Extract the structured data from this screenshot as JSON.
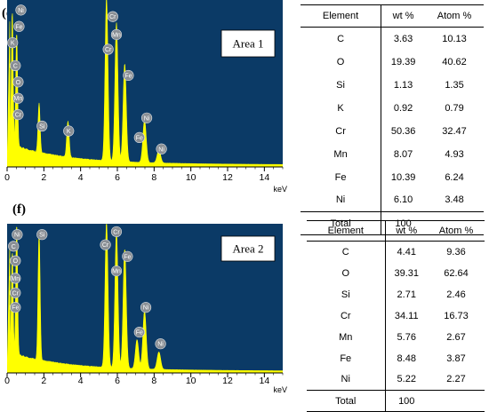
{
  "panels": [
    {
      "label": "(e)",
      "area_label": "Area 1",
      "table": {
        "headers": [
          "Element",
          "wt %",
          "Atom %"
        ],
        "rows": [
          [
            "C",
            "3.63",
            "10.13"
          ],
          [
            "O",
            "19.39",
            "40.62"
          ],
          [
            "Si",
            "1.13",
            "1.35"
          ],
          [
            "K",
            "0.92",
            "0.79"
          ],
          [
            "Cr",
            "50.36",
            "32.47"
          ],
          [
            "Mn",
            "8.07",
            "4.93"
          ],
          [
            "Fe",
            "10.39",
            "6.24"
          ],
          [
            "Ni",
            "6.10",
            "3.48"
          ]
        ],
        "total": [
          "Total",
          "100",
          ""
        ]
      }
    },
    {
      "label": "(f)",
      "area_label": "Area 2",
      "table": {
        "headers": [
          "Element",
          "wt %",
          "Atom %"
        ],
        "rows": [
          [
            "C",
            "4.41",
            "9.36"
          ],
          [
            "O",
            "39.31",
            "62.64"
          ],
          [
            "Si",
            "2.71",
            "2.46"
          ],
          [
            "Cr",
            "34.11",
            "16.73"
          ],
          [
            "Mn",
            "5.76",
            "2.67"
          ],
          [
            "Fe",
            "8.48",
            "3.87"
          ],
          [
            "Ni",
            "5.22",
            "2.27"
          ]
        ],
        "total": [
          "Total",
          "100",
          ""
        ]
      }
    }
  ],
  "chart_data": [
    {
      "type": "area",
      "xlabel": "keV",
      "xlim": [
        0,
        15
      ],
      "x_ticks": [
        0,
        2,
        4,
        6,
        8,
        10,
        12,
        14
      ],
      "grid": false,
      "colors": {
        "plot_bg": "#0b3a66",
        "spectrum": "#ffff00",
        "tag": "#8a8f95"
      },
      "peaks": [
        {
          "x": 0.28,
          "rel_height": 0.82
        },
        {
          "x": 0.52,
          "rel_height": 0.7
        },
        {
          "x": 1.74,
          "rel_height": 0.3
        },
        {
          "x": 3.31,
          "rel_height": 0.22
        },
        {
          "x": 5.41,
          "rel_height": 1.0
        },
        {
          "x": 5.95,
          "rel_height": 0.85
        },
        {
          "x": 6.4,
          "rel_height": 0.6
        },
        {
          "x": 7.48,
          "rel_height": 0.26
        },
        {
          "x": 8.26,
          "rel_height": 0.08
        }
      ],
      "tags": [
        {
          "text": "Ni",
          "x": 0.75,
          "rel_y": 0.96
        },
        {
          "text": "Fe",
          "x": 0.65,
          "rel_y": 0.86
        },
        {
          "text": "K",
          "x": 0.3,
          "rel_y": 0.76
        },
        {
          "text": "C",
          "x": 0.45,
          "rel_y": 0.62
        },
        {
          "text": "O",
          "x": 0.6,
          "rel_y": 0.52
        },
        {
          "text": "Mn",
          "x": 0.6,
          "rel_y": 0.42
        },
        {
          "text": "Cr",
          "x": 0.6,
          "rel_y": 0.32
        },
        {
          "text": "Si",
          "x": 1.9,
          "rel_y": 0.25
        },
        {
          "text": "K",
          "x": 3.35,
          "rel_y": 0.22
        },
        {
          "text": "Cr",
          "x": 5.75,
          "rel_y": 0.92
        },
        {
          "text": "Mn",
          "x": 5.95,
          "rel_y": 0.81
        },
        {
          "text": "Cr",
          "x": 5.5,
          "rel_y": 0.72
        },
        {
          "text": "Fe",
          "x": 6.6,
          "rel_y": 0.56
        },
        {
          "text": "Ni",
          "x": 7.6,
          "rel_y": 0.3
        },
        {
          "text": "Fe",
          "x": 7.2,
          "rel_y": 0.18
        },
        {
          "text": "Ni",
          "x": 8.4,
          "rel_y": 0.11
        }
      ]
    },
    {
      "type": "area",
      "xlabel": "keV",
      "xlim": [
        0,
        15
      ],
      "x_ticks": [
        0,
        2,
        4,
        6,
        8,
        10,
        12,
        14
      ],
      "grid": false,
      "colors": {
        "plot_bg": "#0b3a66",
        "spectrum": "#ffff00",
        "tag": "#8a8f95"
      },
      "peaks": [
        {
          "x": 0.28,
          "rel_height": 0.7
        },
        {
          "x": 0.52,
          "rel_height": 0.9
        },
        {
          "x": 1.74,
          "rel_height": 0.88
        },
        {
          "x": 5.41,
          "rel_height": 1.0
        },
        {
          "x": 5.95,
          "rel_height": 0.94
        },
        {
          "x": 6.4,
          "rel_height": 0.82
        },
        {
          "x": 7.07,
          "rel_height": 0.2
        },
        {
          "x": 7.48,
          "rel_height": 0.4
        },
        {
          "x": 8.26,
          "rel_height": 0.12
        }
      ],
      "tags": [
        {
          "text": "Ni",
          "x": 0.55,
          "rel_y": 0.95
        },
        {
          "text": "C",
          "x": 0.35,
          "rel_y": 0.87
        },
        {
          "text": "O",
          "x": 0.45,
          "rel_y": 0.77
        },
        {
          "text": "Mn",
          "x": 0.45,
          "rel_y": 0.65
        },
        {
          "text": "Cr",
          "x": 0.45,
          "rel_y": 0.55
        },
        {
          "text": "Fe",
          "x": 0.45,
          "rel_y": 0.45
        },
        {
          "text": "Si",
          "x": 1.9,
          "rel_y": 0.95
        },
        {
          "text": "Cr",
          "x": 5.35,
          "rel_y": 0.88
        },
        {
          "text": "Cr",
          "x": 5.95,
          "rel_y": 0.97
        },
        {
          "text": "Fe",
          "x": 6.55,
          "rel_y": 0.8
        },
        {
          "text": "Mn",
          "x": 5.95,
          "rel_y": 0.7
        },
        {
          "text": "Ni",
          "x": 7.55,
          "rel_y": 0.45
        },
        {
          "text": "Fe",
          "x": 7.2,
          "rel_y": 0.28
        },
        {
          "text": "Ni",
          "x": 8.35,
          "rel_y": 0.2
        }
      ]
    }
  ]
}
